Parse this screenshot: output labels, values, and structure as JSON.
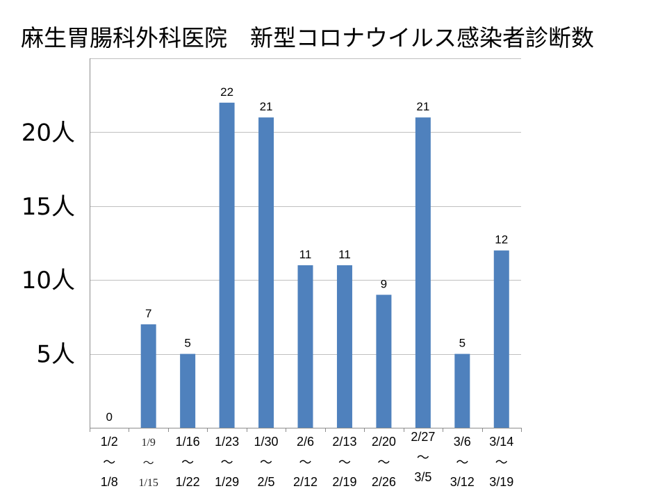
{
  "chart_data": {
    "type": "bar",
    "title": "麻生胃腸科外科医院　新型コロナウイルス感染者診断数",
    "categories": [
      {
        "start": "1/2",
        "sep": "～",
        "end": "1/8"
      },
      {
        "start": "1/9",
        "sep": "～",
        "end": "1/15"
      },
      {
        "start": "1/16",
        "sep": "～",
        "end": "1/22"
      },
      {
        "start": "1/23",
        "sep": "～",
        "end": "1/29"
      },
      {
        "start": "1/30",
        "sep": "～",
        "end": "2/5"
      },
      {
        "start": "2/6",
        "sep": "～",
        "end": "2/12"
      },
      {
        "start": "2/13",
        "sep": "～",
        "end": "2/19"
      },
      {
        "start": "2/20",
        "sep": "～",
        "end": "2/26"
      },
      {
        "start": "2/27",
        "sep": "～",
        "end": "3/5"
      },
      {
        "start": "3/6",
        "sep": "～",
        "end": "3/12"
      },
      {
        "start": "3/14",
        "sep": "～",
        "end": "3/19"
      }
    ],
    "values": [
      0,
      7,
      5,
      22,
      21,
      11,
      11,
      9,
      21,
      5,
      12
    ],
    "y_ticks": [
      {
        "value": 5,
        "label": "5人"
      },
      {
        "value": 10,
        "label": "10人"
      },
      {
        "value": 15,
        "label": "15人"
      },
      {
        "value": 20,
        "label": "20人"
      }
    ],
    "ylim": [
      0,
      25
    ],
    "grid": true,
    "colors": {
      "bar": "#4f81bd",
      "grid": "#bfbfbf",
      "axis": "#8c8c8c"
    }
  }
}
